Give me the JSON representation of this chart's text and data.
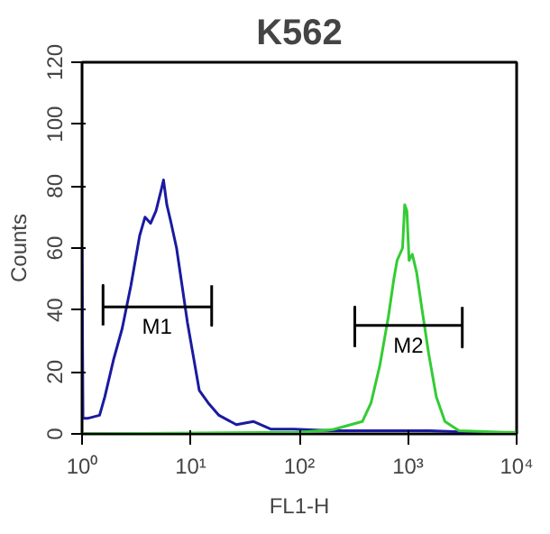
{
  "chart_data": {
    "type": "line",
    "title": "K562",
    "xlabel": "FL1-H",
    "ylabel": "Counts",
    "log": "x",
    "xlim": [
      1,
      10000
    ],
    "ylim": [
      0,
      120
    ],
    "xticks": [
      {
        "value": 1,
        "label": "10⁰"
      },
      {
        "value": 10,
        "label": "10¹"
      },
      {
        "value": 100,
        "label": "10²"
      },
      {
        "value": 1000,
        "label": "10³"
      },
      {
        "value": 10000,
        "label": "10⁴"
      }
    ],
    "yticks": [
      0,
      20,
      40,
      60,
      80,
      100,
      120
    ],
    "grid": false,
    "series": [
      {
        "color": "#1a1aa0",
        "x": [
          1,
          1.02,
          1.12,
          1.45,
          1.62,
          1.95,
          2.34,
          2.82,
          3.39,
          3.8,
          4.27,
          4.79,
          5.37,
          5.62,
          6.03,
          6.61,
          7.41,
          8.32,
          9.33,
          10.7,
          12.0,
          14.5,
          18.2,
          26.3,
          38,
          55,
          89,
          200,
          631,
          1585,
          10000
        ],
        "values": [
          60,
          5,
          5,
          6,
          12,
          24,
          34,
          48,
          64,
          70,
          68,
          72,
          79,
          82,
          74,
          68,
          60,
          48,
          36,
          24,
          14,
          10,
          6,
          3,
          4,
          1.5,
          1.5,
          1,
          1,
          1,
          0
        ]
      },
      {
        "color": "#33cc33",
        "x": [
          1,
          100,
          204,
          380,
          457,
          550,
          661,
          741,
          794,
          891,
          933,
          977,
          1023,
          1096,
          1202,
          1349,
          1549,
          1820,
          2188,
          2951,
          7762,
          10000
        ],
        "values": [
          0,
          0.5,
          1.4,
          4,
          10,
          22,
          38,
          50,
          56,
          60,
          74,
          72,
          56,
          58,
          52,
          40,
          26,
          12,
          4,
          1,
          0.5,
          0.5
        ]
      },
      {
        "color": "#000000",
        "x": [
          1.56,
          1.56,
          1.56,
          15.6,
          15.6,
          15.6
        ],
        "values": [
          35,
          48,
          41,
          41,
          35,
          48
        ]
      },
      {
        "color": "#000000",
        "x": [
          324,
          324,
          324,
          3160,
          3160,
          3160
        ],
        "values": [
          28,
          41,
          35,
          35,
          28,
          41
        ]
      }
    ],
    "annotations": [
      {
        "text": "M1",
        "x": 4.9,
        "y": 41
      },
      {
        "text": "M2",
        "x": 1010,
        "y": 35
      }
    ]
  }
}
